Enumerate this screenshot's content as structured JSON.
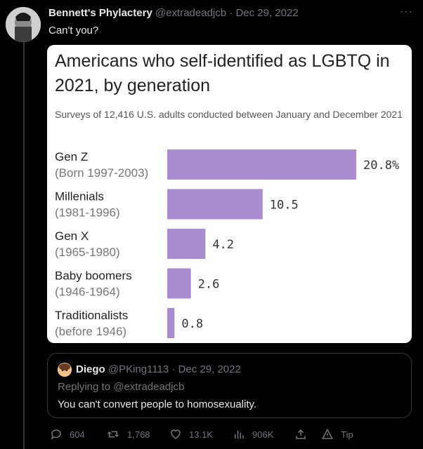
{
  "tweet": {
    "author_name": "Bennett's Phylactery",
    "handle": "@extradeadjcb",
    "date": "Dec 29, 2022",
    "text": "Can't you?",
    "more_label": "···"
  },
  "chart_data": {
    "type": "bar",
    "orientation": "horizontal",
    "title": "Americans who self-identified as LGBTQ in 2021, by generation",
    "subtitle": "Surveys of 12,416 U.S. adults conducted between January and December 2021",
    "categories": [
      "Gen Z",
      "Millenials",
      "Gen X",
      "Baby boomers",
      "Traditionalists"
    ],
    "category_sublabels": [
      "(Born 1997-2003)",
      "(1981-1996)",
      "(1965-1980)",
      "(1946-1964)",
      "(before 1946)"
    ],
    "values": [
      20.8,
      10.5,
      4.2,
      2.6,
      0.8
    ],
    "value_labels": [
      "20.8%",
      "10.5",
      "4.2",
      "2.6",
      "0.8"
    ],
    "bar_color": "#a98bcf",
    "xlim": [
      0,
      20.8
    ],
    "grid": false,
    "legend": "none"
  },
  "quote": {
    "author_name": "Diego",
    "handle": "@PKing1113",
    "date": "Dec 29, 2022",
    "replying_to": "Replying to @extradeadjcb",
    "text": "You can't convert people to homosexuality."
  },
  "actions": {
    "replies": "604",
    "retweets": "1,768",
    "likes": "13.1K",
    "views": "906K",
    "tip": "Tip"
  },
  "colors": {
    "background": "#000000",
    "text": "#e7e9ea",
    "muted": "#71767b",
    "border": "#333639"
  },
  "icons": [
    "reply-icon",
    "retweet-icon",
    "like-icon",
    "views-icon",
    "share-icon",
    "tip-icon"
  ]
}
